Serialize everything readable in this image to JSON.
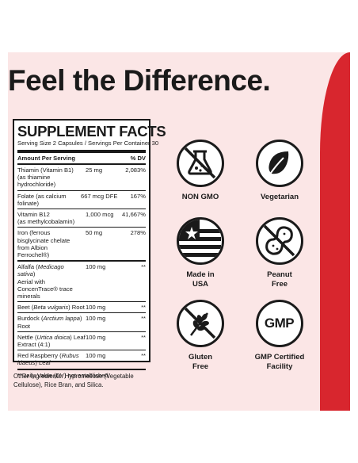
{
  "headline": "Feel the Difference.",
  "facts": {
    "title": "SUPPLEMENT FACTS",
    "serving": "Serving Size 2 Capsules / Servings Per Container 30",
    "header_left": "Amount Per Serving",
    "header_right": "% DV",
    "rows": [
      {
        "name": "Thiamin (Vitamin B1)",
        "sub": "(as thiamine hydrochloride)",
        "amount": "25 mg",
        "dv": "2,083%"
      },
      {
        "name": "Folate (as calcium folinate)",
        "sub": "",
        "amount": "667 mcg DFE",
        "dv": "167%"
      },
      {
        "name": "Vitamin B12",
        "sub": "(as methylcobalamin)",
        "amount": "1,000 mcg",
        "dv": "41,667%"
      },
      {
        "name": "Iron (ferrous bisglycinate chelate from Albion Ferrochel®)",
        "sub": "",
        "amount": "50 mg",
        "dv": "278%"
      },
      {
        "name_pre": "Alfalfa (",
        "name_it": "Medicago sativa",
        "name_post": ")",
        "sub": "Aerial with ConcenTrace® trace minerals",
        "amount": "100 mg",
        "dv": "**"
      },
      {
        "name_pre": "Beet (",
        "name_it": "Beta vulgaris",
        "name_post": ") Root",
        "sub": "",
        "amount": "100 mg",
        "dv": "**"
      },
      {
        "name_pre": "Burdock (",
        "name_it": "Arctium lappa",
        "name_post": ") Root",
        "sub": "",
        "amount": "100 mg",
        "dv": "**"
      },
      {
        "name_pre": "Nettle (",
        "name_it": "Urtica dioica",
        "name_post": ") Leaf",
        "sub": "Extract (4:1)",
        "amount": "100 mg",
        "dv": "**"
      },
      {
        "name_pre": "Red Raspberry (",
        "name_it": "Rubus idaeus",
        "name_post": ") Leaf",
        "sub": "",
        "amount": "100 mg",
        "dv": "**"
      }
    ],
    "footnote": "**Daily Value (DV) not established."
  },
  "other_ingredients": "Other Ingredients: Hypromellose (Vegetable Cellulose), Rice Bran, and Silica.",
  "badges": {
    "non_gmo": "NON GMO",
    "vegetarian": "Vegetarian",
    "made_usa_1": "Made in",
    "made_usa_2": "USA",
    "peanut_1": "Peanut",
    "peanut_2": "Free",
    "gluten_1": "Gluten",
    "gluten_2": "Free",
    "gmp_text": "GMP",
    "gmp_1": "GMP Certified",
    "gmp_2": "Facility"
  },
  "colors": {
    "accent_red": "#d8262e",
    "panel_pink": "#fbe6e6",
    "ink": "#1a1a1a"
  }
}
